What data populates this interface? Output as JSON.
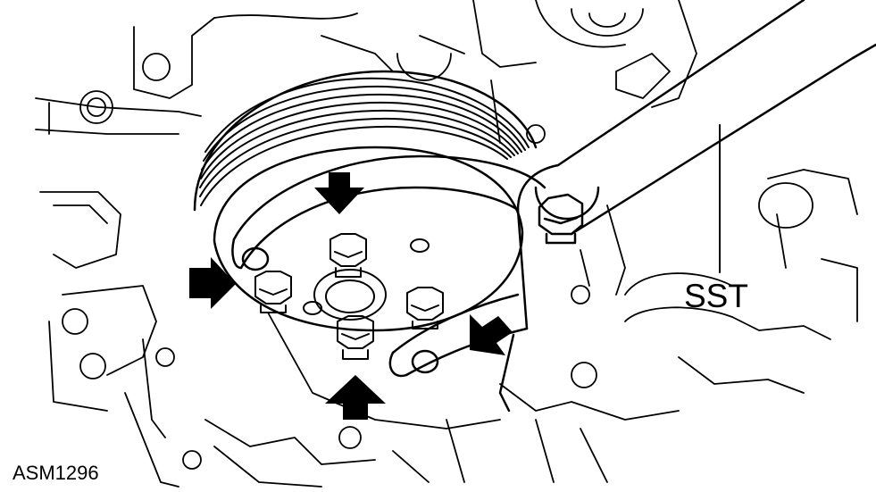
{
  "figure": {
    "callout_label": "SST",
    "figure_id": "ASM1296",
    "line_color": "#000000",
    "background": "#ffffff"
  },
  "legend_icons": {
    "arrows": "arrow-icon",
    "bolts": "bolt-icon"
  }
}
